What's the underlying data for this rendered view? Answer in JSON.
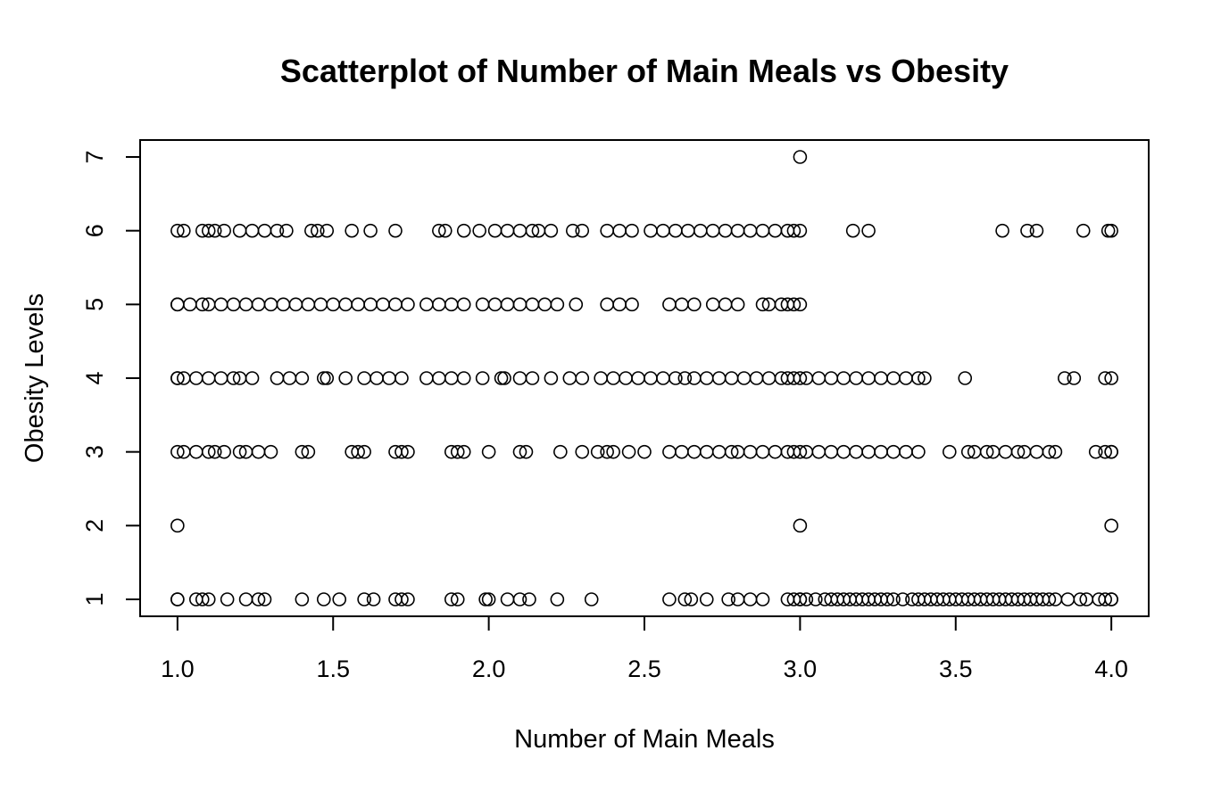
{
  "chart_data": {
    "type": "scatter",
    "title": "Scatterplot of Number of Main Meals vs Obesity",
    "xlabel": "Number of Main Meals",
    "ylabel": "Obesity Levels",
    "xlim": [
      0.88,
      4.12
    ],
    "ylim": [
      0.77,
      7.23
    ],
    "x_ticks": [
      1.0,
      1.5,
      2.0,
      2.5,
      3.0,
      3.5,
      4.0
    ],
    "x_tick_labels": [
      "1.0",
      "1.5",
      "2.0",
      "2.5",
      "3.0",
      "3.5",
      "4.0"
    ],
    "y_ticks": [
      1,
      2,
      3,
      4,
      5,
      6,
      7
    ],
    "y_tick_labels": [
      "1",
      "2",
      "3",
      "4",
      "5",
      "6",
      "7"
    ],
    "grid": false,
    "marker": "open-circle",
    "points": {
      "1": [
        1.0,
        1.0,
        1.06,
        1.08,
        1.1,
        1.16,
        1.22,
        1.26,
        1.28,
        1.4,
        1.47,
        1.52,
        1.6,
        1.63,
        1.7,
        1.72,
        1.74,
        1.88,
        1.9,
        1.99,
        2.0,
        2.06,
        2.1,
        2.13,
        2.22,
        2.33,
        2.58,
        2.63,
        2.65,
        2.7,
        2.77,
        2.8,
        2.84,
        2.88,
        2.96,
        2.98,
        3.0,
        3.0,
        3.02,
        3.05,
        3.08,
        3.1,
        3.12,
        3.14,
        3.16,
        3.18,
        3.2,
        3.22,
        3.24,
        3.26,
        3.28,
        3.3,
        3.33,
        3.36,
        3.38,
        3.4,
        3.42,
        3.44,
        3.46,
        3.48,
        3.5,
        3.52,
        3.54,
        3.56,
        3.58,
        3.6,
        3.62,
        3.64,
        3.66,
        3.68,
        3.7,
        3.72,
        3.74,
        3.76,
        3.78,
        3.8,
        3.82,
        3.86,
        3.9,
        3.92,
        3.96,
        3.98,
        4.0,
        4.0
      ],
      "2": [
        1.0,
        3.0,
        4.0
      ],
      "3": [
        1.0,
        1.02,
        1.06,
        1.1,
        1.12,
        1.15,
        1.2,
        1.22,
        1.26,
        1.3,
        1.4,
        1.42,
        1.56,
        1.58,
        1.6,
        1.7,
        1.72,
        1.74,
        1.88,
        1.9,
        1.92,
        2.0,
        2.1,
        2.12,
        2.23,
        2.3,
        2.35,
        2.38,
        2.4,
        2.45,
        2.5,
        2.58,
        2.62,
        2.66,
        2.7,
        2.74,
        2.78,
        2.8,
        2.84,
        2.88,
        2.92,
        2.96,
        2.98,
        3.0,
        3.02,
        3.06,
        3.1,
        3.14,
        3.18,
        3.22,
        3.26,
        3.3,
        3.34,
        3.38,
        3.48,
        3.54,
        3.56,
        3.6,
        3.62,
        3.66,
        3.7,
        3.72,
        3.76,
        3.8,
        3.82,
        3.95,
        3.98,
        4.0,
        4.0
      ],
      "4": [
        1.0,
        1.0,
        1.02,
        1.06,
        1.1,
        1.14,
        1.18,
        1.2,
        1.24,
        1.32,
        1.36,
        1.4,
        1.47,
        1.48,
        1.54,
        1.6,
        1.64,
        1.68,
        1.72,
        1.8,
        1.84,
        1.88,
        1.92,
        1.98,
        2.04,
        2.05,
        2.1,
        2.14,
        2.2,
        2.26,
        2.3,
        2.36,
        2.4,
        2.44,
        2.48,
        2.52,
        2.56,
        2.6,
        2.63,
        2.66,
        2.7,
        2.74,
        2.78,
        2.82,
        2.86,
        2.9,
        2.94,
        2.96,
        2.98,
        3.0,
        3.02,
        3.06,
        3.1,
        3.14,
        3.18,
        3.22,
        3.26,
        3.3,
        3.34,
        3.38,
        3.4,
        3.53,
        3.85,
        3.88,
        3.98,
        4.0
      ],
      "5": [
        1.0,
        1.0,
        1.04,
        1.08,
        1.1,
        1.14,
        1.18,
        1.22,
        1.26,
        1.3,
        1.34,
        1.38,
        1.42,
        1.46,
        1.5,
        1.54,
        1.58,
        1.62,
        1.66,
        1.7,
        1.74,
        1.8,
        1.84,
        1.88,
        1.92,
        1.98,
        2.02,
        2.06,
        2.1,
        2.14,
        2.18,
        2.22,
        2.28,
        2.38,
        2.42,
        2.46,
        2.58,
        2.62,
        2.66,
        2.72,
        2.76,
        2.8,
        2.88,
        2.9,
        2.94,
        2.96,
        2.98,
        3.0
      ],
      "6": [
        1.0,
        1.02,
        1.08,
        1.1,
        1.12,
        1.15,
        1.2,
        1.24,
        1.28,
        1.32,
        1.35,
        1.43,
        1.45,
        1.48,
        1.56,
        1.62,
        1.7,
        1.84,
        1.86,
        1.92,
        1.97,
        2.02,
        2.06,
        2.1,
        2.14,
        2.16,
        2.2,
        2.27,
        2.3,
        2.38,
        2.42,
        2.46,
        2.52,
        2.56,
        2.6,
        2.64,
        2.68,
        2.72,
        2.76,
        2.8,
        2.84,
        2.88,
        2.92,
        2.96,
        2.98,
        3.0,
        3.17,
        3.22,
        3.65,
        3.73,
        3.76,
        3.91,
        3.99,
        4.0
      ],
      "7": [
        3.0
      ]
    }
  }
}
